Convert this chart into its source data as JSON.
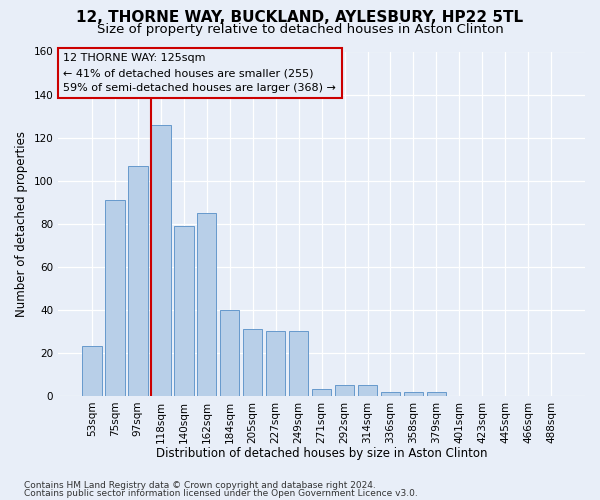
{
  "title": "12, THORNE WAY, BUCKLAND, AYLESBURY, HP22 5TL",
  "subtitle": "Size of property relative to detached houses in Aston Clinton",
  "xlabel": "Distribution of detached houses by size in Aston Clinton",
  "ylabel": "Number of detached properties",
  "footnote1": "Contains HM Land Registry data © Crown copyright and database right 2024.",
  "footnote2": "Contains public sector information licensed under the Open Government Licence v3.0.",
  "annotation_line1": "12 THORNE WAY: 125sqm",
  "annotation_line2": "← 41% of detached houses are smaller (255)",
  "annotation_line3": "59% of semi-detached houses are larger (368) →",
  "bar_labels": [
    "53sqm",
    "75sqm",
    "97sqm",
    "118sqm",
    "140sqm",
    "162sqm",
    "184sqm",
    "205sqm",
    "227sqm",
    "249sqm",
    "271sqm",
    "292sqm",
    "314sqm",
    "336sqm",
    "358sqm",
    "379sqm",
    "401sqm",
    "423sqm",
    "445sqm",
    "466sqm",
    "488sqm"
  ],
  "bar_values": [
    23,
    91,
    107,
    126,
    79,
    85,
    40,
    31,
    30,
    30,
    3,
    5,
    5,
    2,
    2,
    2,
    0,
    0,
    0,
    0,
    0
  ],
  "bar_color": "#b8cfe8",
  "bar_edge_color": "#6699cc",
  "vline_color": "#cc0000",
  "vline_bar_index": 3,
  "ylim": [
    0,
    160
  ],
  "yticks": [
    0,
    20,
    40,
    60,
    80,
    100,
    120,
    140,
    160
  ],
  "bg_color": "#e8eef8",
  "grid_color": "#ffffff",
  "title_fontsize": 11,
  "subtitle_fontsize": 9.5,
  "axis_label_fontsize": 8.5,
  "tick_fontsize": 7.5,
  "annotation_fontsize": 8,
  "footnote_fontsize": 6.5
}
